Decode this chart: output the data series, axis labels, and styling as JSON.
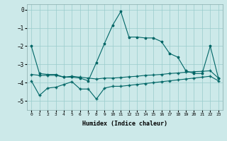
{
  "title": "",
  "xlabel": "Humidex (Indice chaleur)",
  "ylabel": "",
  "bg_color": "#cce9e9",
  "grid_color": "#99cccc",
  "line_color": "#006666",
  "xlim": [
    -0.5,
    23.5
  ],
  "ylim": [
    -5.5,
    0.3
  ],
  "yticks": [
    0,
    -1,
    -2,
    -3,
    -4,
    -5
  ],
  "xticks": [
    0,
    1,
    2,
    3,
    4,
    5,
    6,
    7,
    8,
    9,
    10,
    11,
    12,
    13,
    14,
    15,
    16,
    17,
    18,
    19,
    20,
    21,
    22,
    23
  ],
  "series1_x": [
    0,
    1,
    2,
    3,
    4,
    5,
    6,
    7,
    8,
    9,
    10,
    11,
    12,
    13,
    14,
    15,
    16,
    17,
    18,
    19,
    20,
    21,
    22,
    23
  ],
  "series1_y": [
    -2.0,
    -3.5,
    -3.55,
    -3.55,
    -3.7,
    -3.7,
    -3.75,
    -3.9,
    -2.9,
    -1.85,
    -0.85,
    -0.1,
    -1.5,
    -1.5,
    -1.55,
    -1.55,
    -1.75,
    -2.4,
    -2.6,
    -3.35,
    -3.5,
    -3.5,
    -2.0,
    -3.75
  ],
  "series2_x": [
    0,
    1,
    2,
    3,
    4,
    5,
    6,
    7,
    8,
    9,
    10,
    11,
    12,
    13,
    14,
    15,
    16,
    17,
    18,
    19,
    20,
    21,
    22,
    23
  ],
  "series2_y": [
    -3.55,
    -3.6,
    -3.6,
    -3.6,
    -3.7,
    -3.65,
    -3.7,
    -3.75,
    -3.8,
    -3.75,
    -3.75,
    -3.72,
    -3.68,
    -3.65,
    -3.6,
    -3.58,
    -3.55,
    -3.5,
    -3.47,
    -3.43,
    -3.4,
    -3.38,
    -3.35,
    -3.75
  ],
  "series3_x": [
    0,
    1,
    2,
    3,
    4,
    5,
    6,
    7,
    8,
    9,
    10,
    11,
    12,
    13,
    14,
    15,
    16,
    17,
    18,
    19,
    20,
    21,
    22,
    23
  ],
  "series3_y": [
    -3.9,
    -4.7,
    -4.3,
    -4.25,
    -4.1,
    -3.95,
    -4.35,
    -4.35,
    -4.9,
    -4.3,
    -4.2,
    -4.2,
    -4.15,
    -4.1,
    -4.05,
    -4.0,
    -3.95,
    -3.9,
    -3.85,
    -3.8,
    -3.75,
    -3.7,
    -3.65,
    -3.9
  ]
}
